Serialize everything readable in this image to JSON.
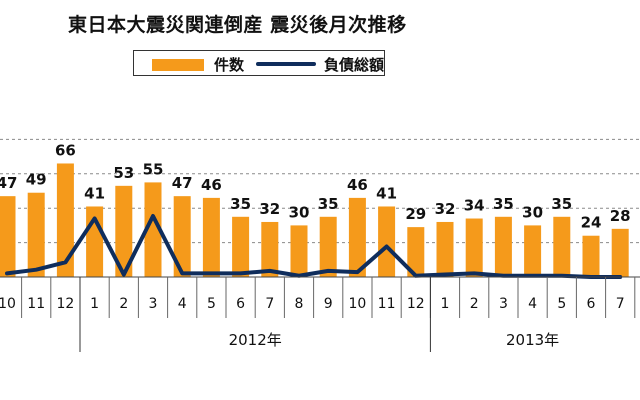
{
  "title": "東日本大震災関連倒産 震災後月次推移",
  "colors": {
    "bar": "#F59A1B",
    "line": "#0F2D5C",
    "grid": "#8a8a8a",
    "text": "#111111"
  },
  "legend": {
    "bar_label": "件数",
    "line_label": "負債総額"
  },
  "chart_data": {
    "type": "bar",
    "title": "東日本大震災関連倒産 震災後月次推移",
    "categories": [
      "10",
      "11",
      "12",
      "1",
      "2",
      "3",
      "4",
      "5",
      "6",
      "7",
      "8",
      "9",
      "10",
      "11",
      "12",
      "1",
      "2",
      "3",
      "4",
      "5",
      "6",
      "7"
    ],
    "year_labels": [
      {
        "label": "2012年",
        "range": [
          3,
          14
        ]
      },
      {
        "label": "2013年",
        "range": [
          15,
          21
        ]
      }
    ],
    "series": [
      {
        "name": "件数",
        "type": "bar",
        "values": [
          47,
          49,
          66,
          41,
          53,
          55,
          47,
          46,
          35,
          32,
          30,
          35,
          46,
          41,
          29,
          32,
          34,
          35,
          30,
          35,
          24,
          28
        ]
      },
      {
        "name": "負債総額",
        "type": "line",
        "values": [
          3,
          6,
          12,
          48,
          2,
          50,
          3,
          3,
          3,
          5,
          1,
          5,
          4,
          25,
          1,
          2,
          3,
          1,
          1,
          1,
          0,
          0
        ]
      }
    ],
    "ylim": [
      0,
      80
    ],
    "grid": true,
    "legend_position": "top-center"
  }
}
